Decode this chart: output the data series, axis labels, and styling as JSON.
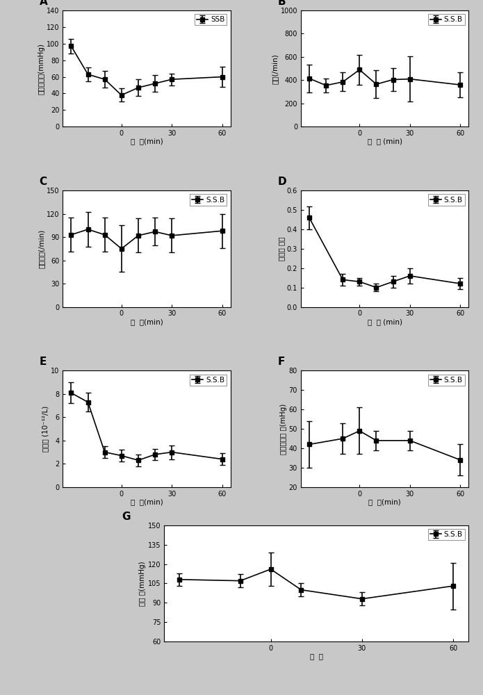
{
  "plots": {
    "A": {
      "label": "A",
      "legend": "SSB",
      "ylabel": "平均动脉压(mmHg)",
      "xlabel": "时  间(min)",
      "ylim": [
        0,
        140
      ],
      "yticks": [
        0,
        20,
        40,
        60,
        80,
        100,
        120,
        140
      ],
      "x": [
        -30,
        -20,
        -10,
        0,
        10,
        20,
        30,
        60
      ],
      "y": [
        97,
        63,
        57,
        38,
        47,
        52,
        57,
        60
      ],
      "yerr": [
        9,
        8,
        10,
        8,
        10,
        10,
        7,
        12
      ],
      "xtick_vals": [
        0,
        30,
        60
      ],
      "xtick_labels": [
        "0",
        "30",
        "60"
      ]
    },
    "B": {
      "label": "B",
      "legend": "S.S.B",
      "ylabel": "心率(/min)",
      "xlabel": "时  间 (min)",
      "ylim": [
        0,
        1000
      ],
      "yticks": [
        0,
        200,
        400,
        600,
        800,
        1000
      ],
      "x": [
        -30,
        -20,
        -10,
        0,
        10,
        20,
        30,
        60
      ],
      "y": [
        415,
        355,
        385,
        490,
        365,
        405,
        410,
        360
      ],
      "yerr": [
        120,
        60,
        80,
        130,
        120,
        100,
        195,
        110
      ],
      "xtick_vals": [
        0,
        30,
        60
      ],
      "xtick_labels": [
        "0",
        "30",
        "60"
      ]
    },
    "C": {
      "label": "C",
      "legend": "S.S.B",
      "ylabel": "呼吸频率(/min)",
      "xlabel": "时  间(min)",
      "ylim": [
        0,
        150
      ],
      "yticks": [
        0,
        30,
        60,
        90,
        120,
        150
      ],
      "x": [
        -30,
        -20,
        -10,
        0,
        10,
        20,
        30,
        60
      ],
      "y": [
        93,
        100,
        93,
        75,
        92,
        97,
        92,
        98
      ],
      "yerr": [
        22,
        22,
        22,
        30,
        22,
        18,
        22,
        22
      ],
      "xtick_vals": [
        0,
        30,
        60
      ],
      "xtick_labels": [
        "0",
        "30",
        "60"
      ]
    },
    "D": {
      "label": "D",
      "legend": "S.S.B",
      "ylabel": "红细胞 压积",
      "xlabel": "时  间 (min)",
      "ylim": [
        0.0,
        0.6
      ],
      "yticks": [
        0.0,
        0.1,
        0.2,
        0.3,
        0.4,
        0.5,
        0.6
      ],
      "x": [
        -30,
        -10,
        0,
        10,
        20,
        30,
        60
      ],
      "y": [
        0.46,
        0.14,
        0.13,
        0.1,
        0.13,
        0.16,
        0.12
      ],
      "yerr": [
        0.06,
        0.03,
        0.02,
        0.02,
        0.03,
        0.04,
        0.03
      ],
      "xtick_vals": [
        0,
        30,
        60
      ],
      "xtick_labels": [
        "0",
        "30",
        "60"
      ]
    },
    "E": {
      "label": "E",
      "legend": "S.S.B",
      "ylabel": "红细胞 (10⁻¹²/L)",
      "xlabel": "时  间(min)",
      "ylim": [
        0,
        10
      ],
      "yticks": [
        0,
        2,
        4,
        6,
        8,
        10
      ],
      "x": [
        -30,
        -20,
        -10,
        0,
        10,
        20,
        30,
        60
      ],
      "y": [
        8.1,
        7.3,
        3.0,
        2.7,
        2.3,
        2.8,
        3.0,
        2.4
      ],
      "yerr": [
        0.9,
        0.8,
        0.5,
        0.5,
        0.5,
        0.5,
        0.6,
        0.5
      ],
      "xtick_vals": [
        0,
        30,
        60
      ],
      "xtick_labels": [
        "0",
        "30",
        "60"
      ]
    },
    "F": {
      "label": "F",
      "legend": "S.S.B",
      "ylabel": "二氧化碳分 压(mHg)",
      "xlabel": "时  间(min)",
      "ylim": [
        20,
        80
      ],
      "yticks": [
        20,
        30,
        40,
        50,
        60,
        70,
        80
      ],
      "x": [
        -30,
        -10,
        0,
        10,
        30,
        60
      ],
      "y": [
        42,
        45,
        49,
        44,
        44,
        34
      ],
      "yerr": [
        12,
        8,
        12,
        5,
        5,
        8
      ],
      "xtick_vals": [
        0,
        30,
        60
      ],
      "xtick_labels": [
        "0",
        "30",
        "60"
      ]
    },
    "G": {
      "label": "G",
      "legend": "S.S.B",
      "ylabel": "氧分 压(mmHg)",
      "xlabel": "时  间",
      "ylim": [
        60,
        150
      ],
      "yticks": [
        60,
        75,
        90,
        105,
        120,
        135,
        150
      ],
      "x": [
        -30,
        -10,
        0,
        10,
        30,
        60
      ],
      "y": [
        108,
        107,
        116,
        100,
        93,
        103
      ],
      "yerr": [
        5,
        5,
        13,
        5,
        5,
        18
      ],
      "xtick_vals": [
        0,
        30,
        60
      ],
      "xtick_labels": [
        "0",
        "30",
        "60"
      ]
    }
  },
  "fig_bg": "#c8c8c8",
  "ax_bg": "#ffffff",
  "line_color": "#000000",
  "markersize": 4,
  "linewidth": 1.2,
  "capsize": 3,
  "elinewidth": 1.2
}
